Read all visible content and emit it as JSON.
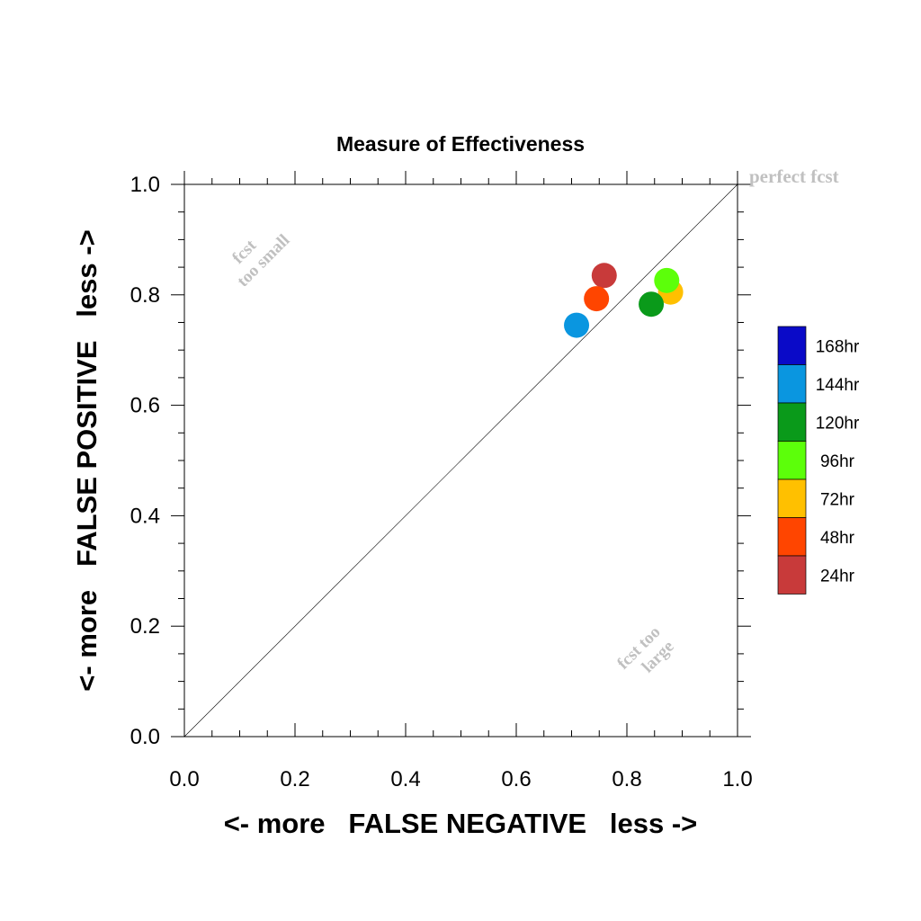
{
  "chart_data": {
    "type": "scatter",
    "title": "Measure of Effectiveness",
    "xlabel": "<- more   FALSE NEGATIVE   less ->",
    "ylabel": "<- more   FALSE POSITIVE   less ->",
    "xlim": [
      0,
      1
    ],
    "ylim": [
      0,
      1
    ],
    "xticks": [
      "0.0",
      "0.2",
      "0.4",
      "0.6",
      "0.8",
      "1.0"
    ],
    "yticks": [
      "0.0",
      "0.2",
      "0.4",
      "0.6",
      "0.8",
      "1.0"
    ],
    "grid": false,
    "diagonal_reference_line": true,
    "annotations": {
      "perfect": "perfect fcst",
      "too_small_line1": "fcst",
      "too_small_line2": "too small",
      "too_large_line1": "fcst too",
      "too_large_line2": "large"
    },
    "series": [
      {
        "name": "24hr",
        "color": "#c83a3a",
        "x": 0.759,
        "y": 0.835
      },
      {
        "name": "48hr",
        "color": "#ff4500",
        "x": 0.745,
        "y": 0.793
      },
      {
        "name": "72hr",
        "color": "#ffc000",
        "x": 0.879,
        "y": 0.805
      },
      {
        "name": "96hr",
        "color": "#5cff0a",
        "x": 0.872,
        "y": 0.826
      },
      {
        "name": "120hr",
        "color": "#0a9a1a",
        "x": 0.844,
        "y": 0.783
      },
      {
        "name": "144hr",
        "color": "#0a96e0",
        "x": 0.709,
        "y": 0.745
      }
    ],
    "legend": {
      "placement": "right",
      "entries": [
        {
          "label": "168hr",
          "color": "#0a0ac8"
        },
        {
          "label": "144hr",
          "color": "#0a96e0"
        },
        {
          "label": "120hr",
          "color": "#0a9a1a"
        },
        {
          "label": "96hr",
          "color": "#5cff0a"
        },
        {
          "label": "72hr",
          "color": "#ffc000"
        },
        {
          "label": "48hr",
          "color": "#ff4500"
        },
        {
          "label": "24hr",
          "color": "#c83a3a"
        }
      ]
    }
  }
}
